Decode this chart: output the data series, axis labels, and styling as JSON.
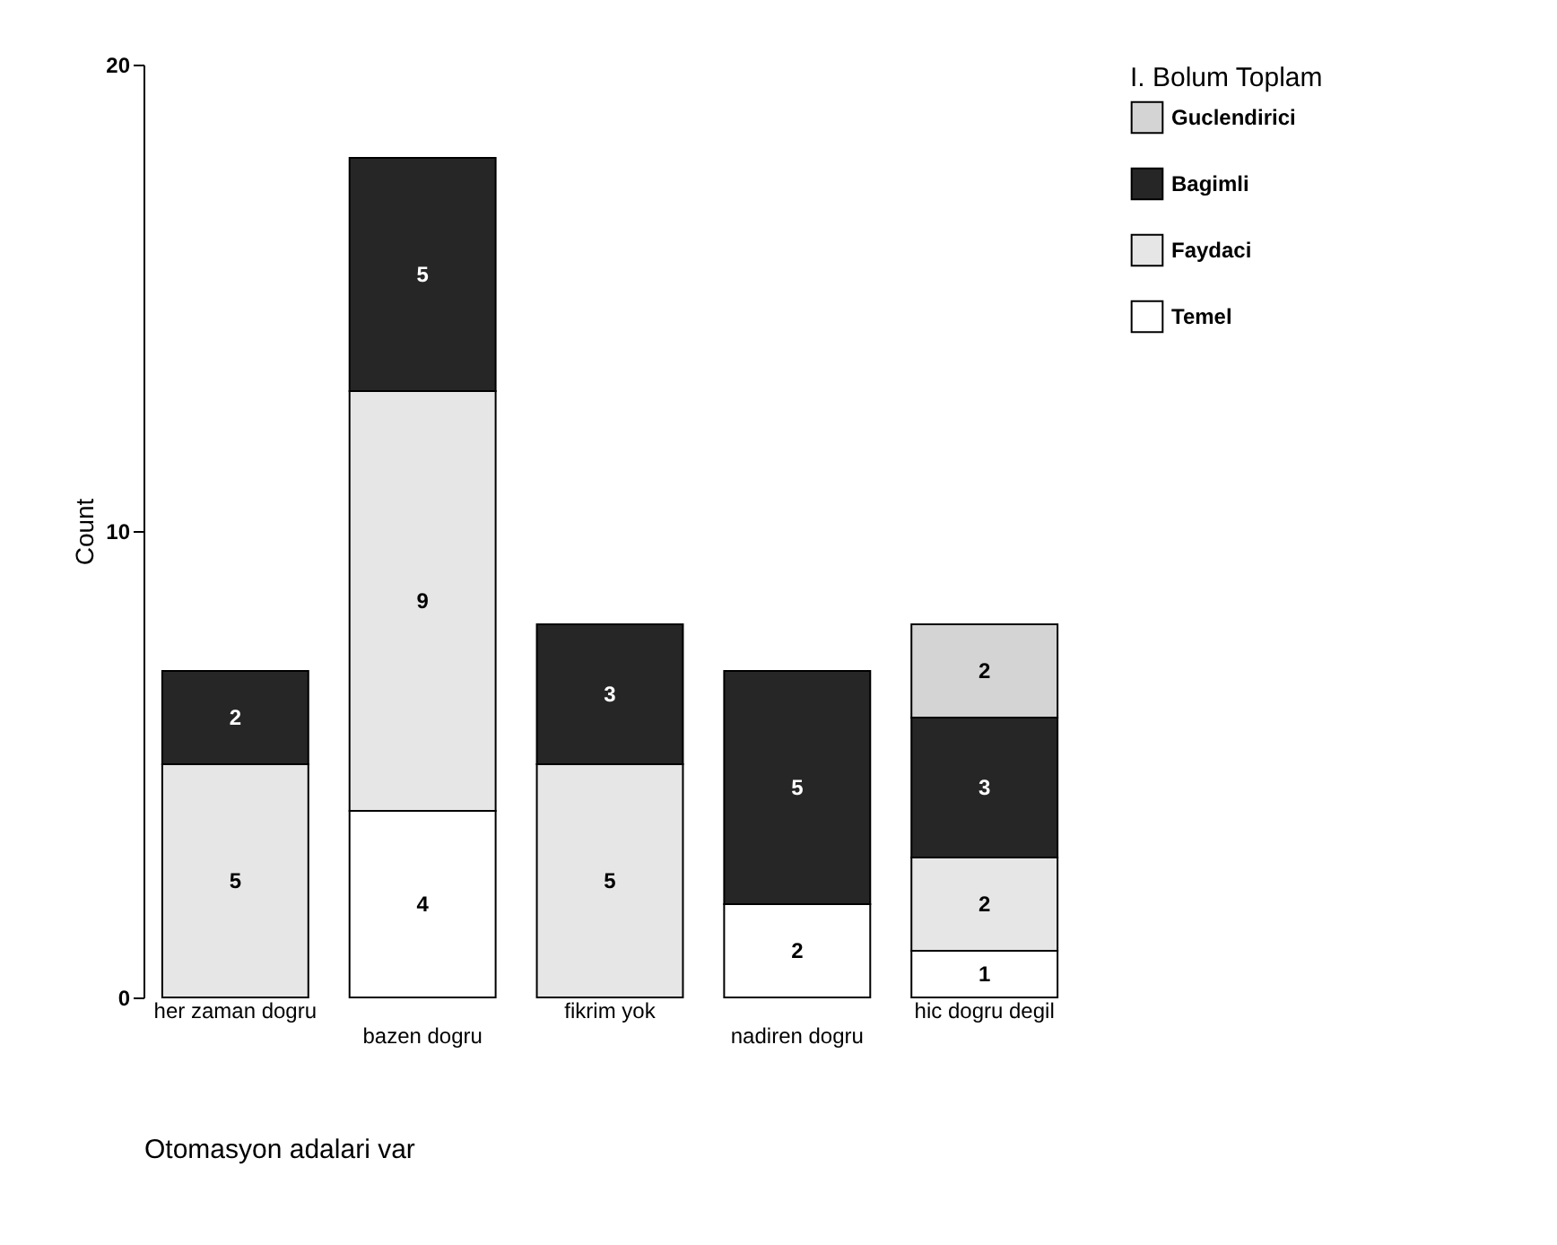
{
  "chart_data": {
    "type": "bar",
    "stacked": true,
    "xlabel": "Otomasyon adalari var",
    "ylabel": "Count",
    "legend_title": "I. Bolum Toplam",
    "categories": [
      "her zaman dogru",
      "bazen dogru",
      "fikrim yok",
      "nadiren dogru",
      "hic dogru degil"
    ],
    "series": [
      {
        "name": "Temel",
        "color": "#ffffff",
        "values": [
          null,
          4,
          null,
          2,
          1
        ]
      },
      {
        "name": "Faydaci",
        "color": "#e6e6e6",
        "values": [
          5,
          9,
          5,
          null,
          2
        ]
      },
      {
        "name": "Bagimli",
        "color": "#262626",
        "values": [
          2,
          5,
          3,
          5,
          3
        ]
      },
      {
        "name": "Guclendirici",
        "color": "#d4d4d4",
        "values": [
          null,
          null,
          null,
          null,
          2
        ]
      }
    ],
    "ylim": [
      0,
      20
    ],
    "yticks": [
      0,
      10,
      20
    ],
    "grid": false,
    "legend": "right",
    "data_labels": true
  }
}
